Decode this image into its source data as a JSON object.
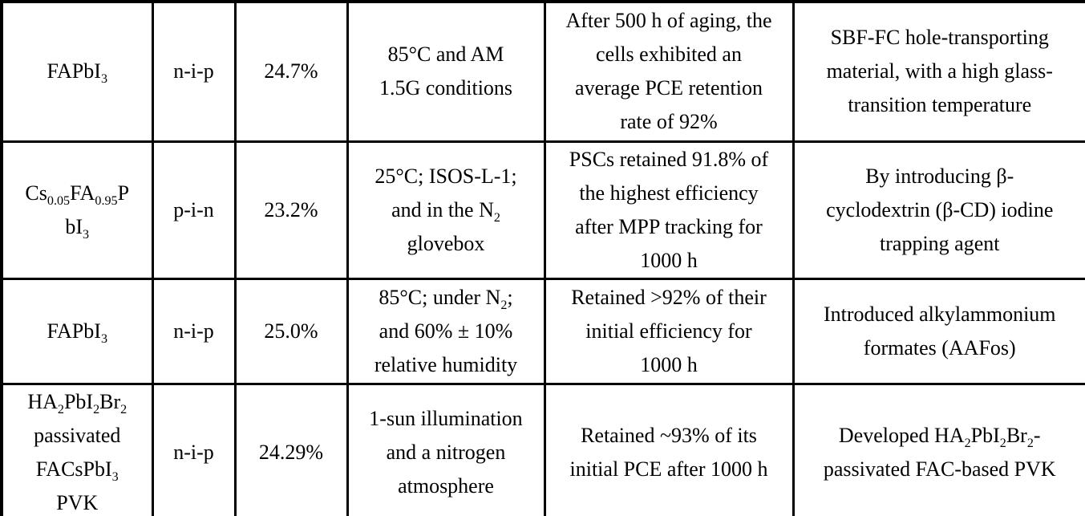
{
  "colors": {
    "background": "#ffffff",
    "text": "#000000",
    "border": "#000000"
  },
  "table": {
    "description": "Table of perovskite solar cell materials, device structures, efficiencies and stability results",
    "rows": [
      {
        "material": "FAPbI_{3}",
        "structure": "n-i-p",
        "pce": "24.7%",
        "conditions": "85°C and AM\n1.5G conditions",
        "stability": "After 500 h of aging, the\ncells exhibited an\naverage PCE retention\nrate of 92%",
        "approach": "SBF-FC hole-transporting\nmaterial, with a high glass-\ntransition temperature"
      },
      {
        "material": "Cs_{0.05}FA_{0.95}P\nbI_{3}",
        "structure": "p-i-n",
        "pce": "23.2%",
        "conditions": "25°C; ISOS-L-1;\nand in the N_{2}\nglovebox",
        "stability": "PSCs retained 91.8% of\nthe highest efficiency\nafter MPP tracking for\n1000 h",
        "approach": "By introducing β-\ncyclodextrin (β-CD) iodine\ntrapping agent"
      },
      {
        "material": "FAPbI_{3}",
        "structure": "n-i-p",
        "pce": "25.0%",
        "conditions": "85°C; under N_{2};\nand 60% ± 10%\nrelative humidity",
        "stability": "Retained >92% of their\ninitial efficiency for\n1000 h",
        "approach": "Introduced alkylammonium\nformates (AAFos)"
      },
      {
        "material": "HA_{2}PbI_{2}Br_{2}\npassivated\nFACsPbI_{3}\nPVK",
        "structure": "n-i-p",
        "pce": "24.29%",
        "conditions": "1-sun illumination\nand a nitrogen\natmosphere",
        "stability": "Retained ~93% of its\ninitial PCE after 1000 h",
        "approach": "Developed HA_{2}PbI_{2}Br_{2}-\npassivated FAC-based PVK"
      }
    ]
  }
}
